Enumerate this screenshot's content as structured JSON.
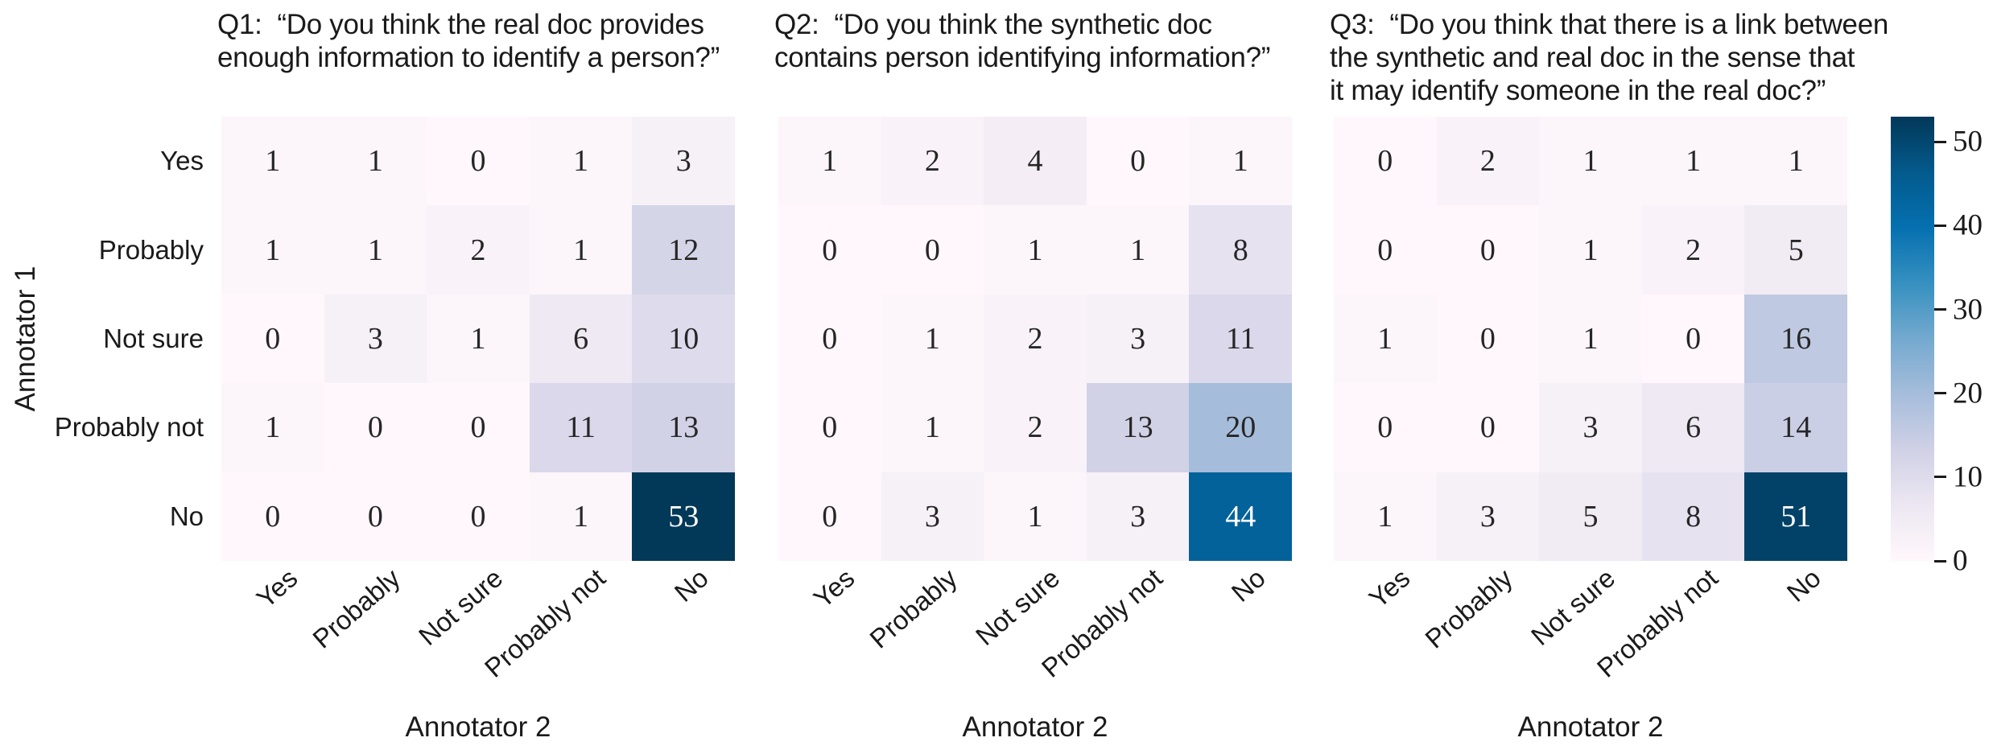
{
  "figure": {
    "background": "#ffffff",
    "text_color": "#1a1a1a"
  },
  "chart_data": [
    {
      "type": "heatmap",
      "title": "Q1:  “Do you think the real doc provides\nenough information to identify a person?”",
      "xlabel": "Annotator 2",
      "ylabel": "Annotator 1",
      "row_categories": [
        "Yes",
        "Probably",
        "Not sure",
        "Probably not",
        "No"
      ],
      "col_categories": [
        "Yes",
        "Probably",
        "Not sure",
        "Probably not",
        "No"
      ],
      "values": [
        [
          1,
          1,
          0,
          1,
          3
        ],
        [
          1,
          1,
          2,
          1,
          12
        ],
        [
          0,
          3,
          1,
          6,
          10
        ],
        [
          1,
          0,
          0,
          11,
          13
        ],
        [
          0,
          0,
          0,
          1,
          53
        ]
      ]
    },
    {
      "type": "heatmap",
      "title": "Q2:  “Do you think the synthetic doc\ncontains person identifying information?”",
      "xlabel": "Annotator 2",
      "ylabel": "Annotator 1",
      "row_categories": [
        "Yes",
        "Probably",
        "Not sure",
        "Probably not",
        "No"
      ],
      "col_categories": [
        "Yes",
        "Probably",
        "Not sure",
        "Probably not",
        "No"
      ],
      "values": [
        [
          1,
          2,
          4,
          0,
          1
        ],
        [
          0,
          0,
          1,
          1,
          8
        ],
        [
          0,
          1,
          2,
          3,
          11
        ],
        [
          0,
          1,
          2,
          13,
          20
        ],
        [
          0,
          3,
          1,
          3,
          44
        ]
      ]
    },
    {
      "type": "heatmap",
      "title": "Q3:  “Do you think that there is a link between\nthe synthetic and real doc in the sense that\nit may identify someone in the real doc?”",
      "xlabel": "Annotator 2",
      "ylabel": "Annotator 1",
      "row_categories": [
        "Yes",
        "Probably",
        "Not sure",
        "Probably not",
        "No"
      ],
      "col_categories": [
        "Yes",
        "Probably",
        "Not sure",
        "Probably not",
        "No"
      ],
      "values": [
        [
          0,
          2,
          1,
          1,
          1
        ],
        [
          0,
          0,
          1,
          2,
          5
        ],
        [
          1,
          0,
          1,
          0,
          16
        ],
        [
          0,
          0,
          3,
          6,
          14
        ],
        [
          1,
          3,
          5,
          8,
          51
        ]
      ]
    }
  ],
  "colorbar": {
    "orientation": "vertical",
    "vmin": 0,
    "vmax": 53,
    "ticks": [
      0,
      10,
      20,
      30,
      40,
      50
    ],
    "colormap_name": "PuBu",
    "colormap_stops": [
      "#fff7fb",
      "#ece7f2",
      "#d0d1e6",
      "#a6bddb",
      "#74a9cf",
      "#3690c0",
      "#0570b0",
      "#045a8d",
      "#023858"
    ]
  }
}
